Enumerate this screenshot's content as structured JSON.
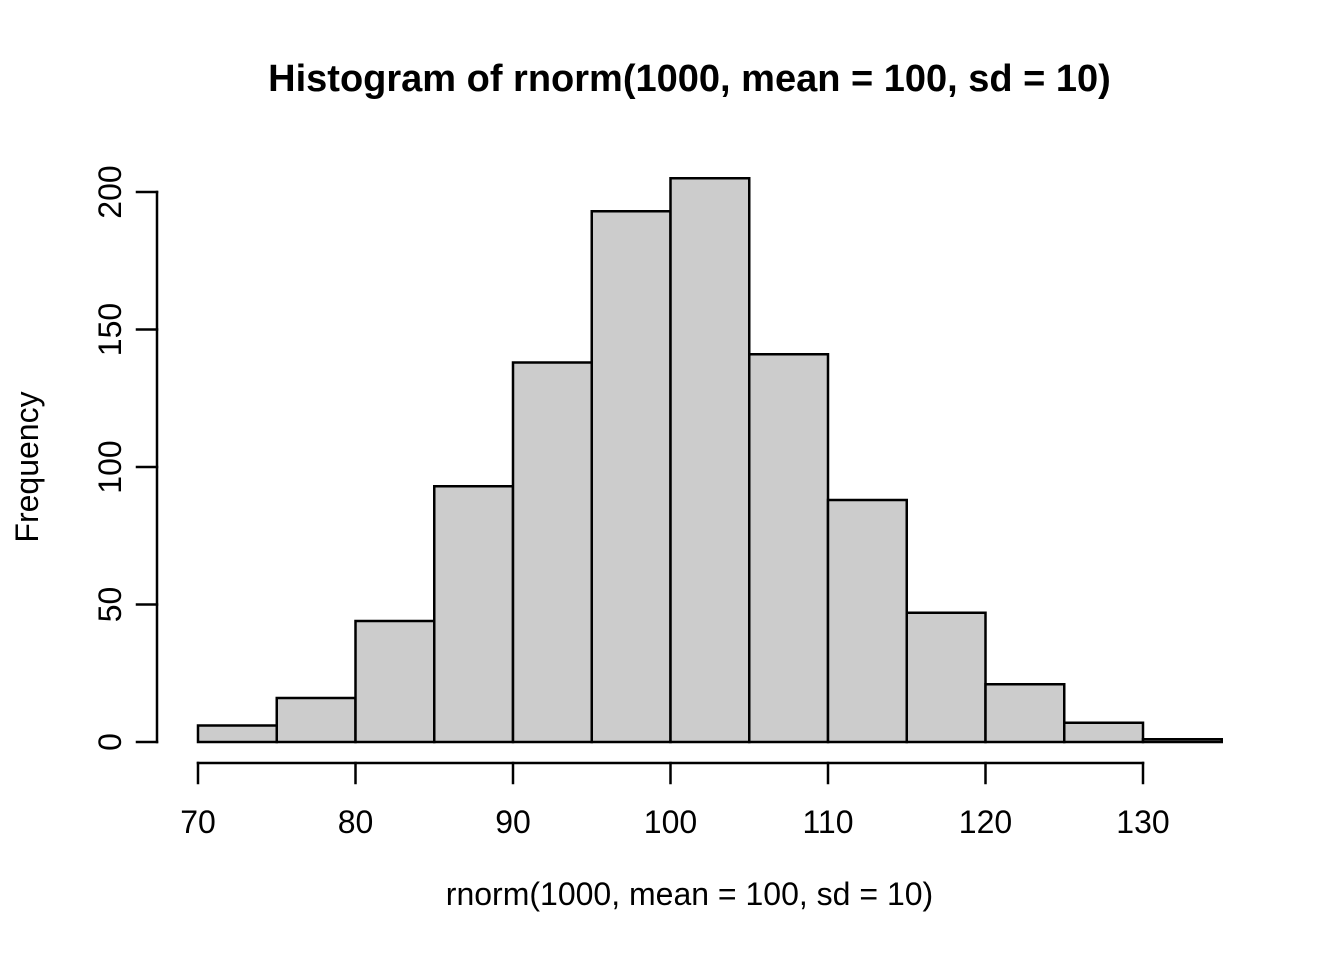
{
  "chart_data": {
    "type": "bar",
    "subtype": "histogram",
    "title": "Histogram of rnorm(1000, mean = 100, sd = 10)",
    "xlabel": "rnorm(1000, mean = 100, sd = 10)",
    "ylabel": "Frequency",
    "bin_edges": [
      70,
      75,
      80,
      85,
      90,
      95,
      100,
      105,
      110,
      115,
      120,
      125,
      130,
      135
    ],
    "values": [
      6,
      16,
      44,
      93,
      138,
      193,
      205,
      141,
      88,
      47,
      21,
      7,
      1
    ],
    "total_count": 1000,
    "x_ticks": [
      70,
      80,
      90,
      100,
      110,
      120,
      130
    ],
    "y_ticks": [
      0,
      50,
      100,
      150,
      200
    ],
    "xlim": [
      70,
      135
    ],
    "ylim": [
      0,
      205
    ],
    "grid": false,
    "legend": false,
    "bar_fill": "#cccccc",
    "bar_stroke": "#000000",
    "axis_color": "#000000",
    "text_color": "#000000",
    "background": "#ffffff"
  }
}
